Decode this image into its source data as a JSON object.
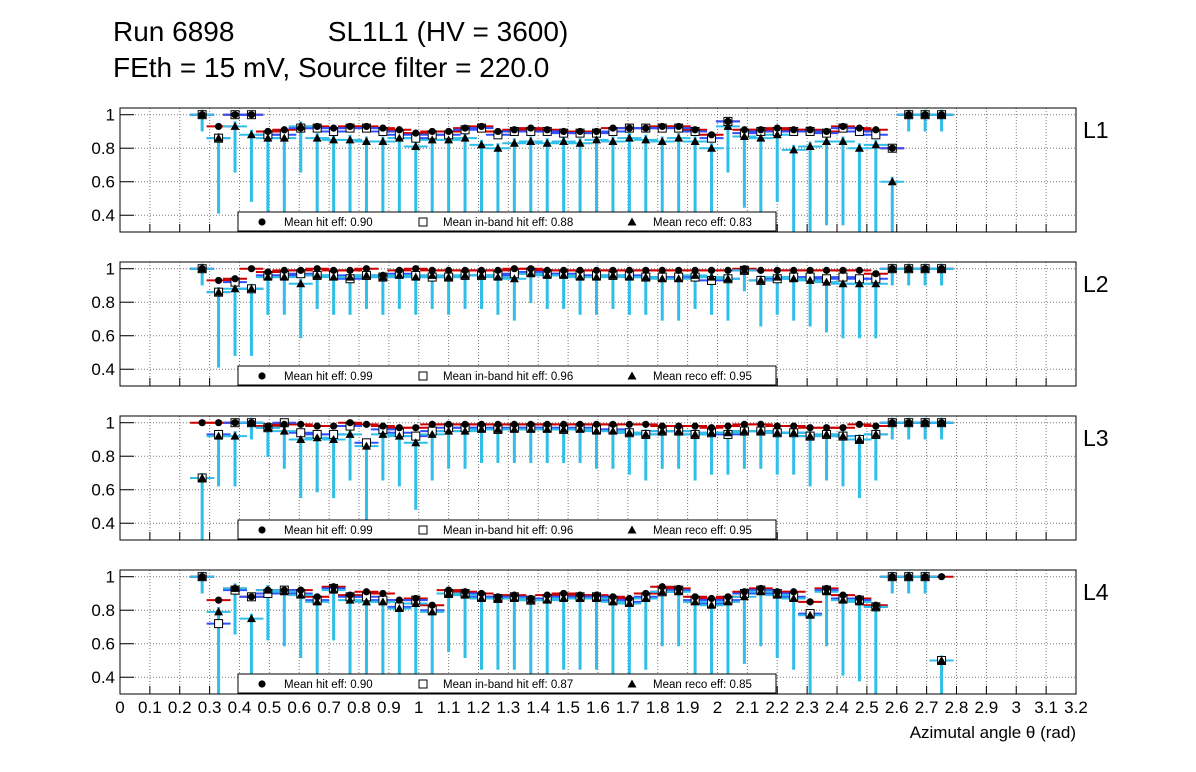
{
  "title": {
    "line1": "Run 6898            SL1L1 (HV = 3600)",
    "line2": "FEth = 15 mV, Source filter = 220.0"
  },
  "colors": {
    "hit": "#cc0000",
    "inband": "#3050ff",
    "reco": "#2fbfe8",
    "grid": "#7a7a7a"
  },
  "chart_data": {
    "type": "scatter",
    "x": [
      0.275,
      0.33,
      0.385,
      0.44,
      0.495,
      0.55,
      0.605,
      0.66,
      0.715,
      0.77,
      0.825,
      0.88,
      0.935,
      0.99,
      1.045,
      1.1,
      1.155,
      1.21,
      1.265,
      1.32,
      1.375,
      1.43,
      1.485,
      1.54,
      1.595,
      1.65,
      1.705,
      1.76,
      1.815,
      1.87,
      1.925,
      1.98,
      2.035,
      2.09,
      2.145,
      2.2,
      2.255,
      2.31,
      2.365,
      2.42,
      2.475,
      2.53,
      2.585,
      2.64,
      2.695,
      2.75
    ],
    "xlabel": "Azimutal angle θ (rad)",
    "xlim": [
      0,
      3.2
    ],
    "ylim": [
      0.3,
      1.04
    ],
    "xticks": [
      "0",
      "0.1",
      "0.2",
      "0.3",
      "0.4",
      "0.5",
      "0.6",
      "0.7",
      "0.8",
      "0.9",
      "1",
      "1.1",
      "1.2",
      "1.3",
      "1.4",
      "1.5",
      "1.6",
      "1.7",
      "1.8",
      "1.9",
      "2",
      "2.1",
      "2.2",
      "2.3",
      "2.4",
      "2.5",
      "2.6",
      "2.7",
      "2.8",
      "2.9",
      "3",
      "3.1",
      "3.2"
    ],
    "yticks": [
      "0.4",
      "0.6",
      "0.8",
      "1"
    ],
    "panels": [
      {
        "layer": "L1",
        "series": [
          {
            "name": "hit",
            "values": [
              1.0,
              0.93,
              1.0,
              1.0,
              0.9,
              0.91,
              0.92,
              0.93,
              0.92,
              0.93,
              0.93,
              0.92,
              0.91,
              0.89,
              0.9,
              0.9,
              0.92,
              0.93,
              0.9,
              0.91,
              0.92,
              0.91,
              0.9,
              0.9,
              0.9,
              0.92,
              0.92,
              0.92,
              0.93,
              0.93,
              0.91,
              0.88,
              0.96,
              0.91,
              0.91,
              0.92,
              0.91,
              0.91,
              0.9,
              0.93,
              0.92,
              0.91,
              0.8,
              1.0,
              1.0,
              1.0
            ]
          },
          {
            "name": "inband",
            "values": [
              1.0,
              0.86,
              1.0,
              1.0,
              0.88,
              0.88,
              0.92,
              0.92,
              0.9,
              0.92,
              0.92,
              0.9,
              0.88,
              0.86,
              0.88,
              0.88,
              0.91,
              0.92,
              0.88,
              0.9,
              0.9,
              0.9,
              0.89,
              0.89,
              0.89,
              0.9,
              0.92,
              0.92,
              0.92,
              0.92,
              0.9,
              0.86,
              0.96,
              0.89,
              0.9,
              0.9,
              0.9,
              0.9,
              0.89,
              0.92,
              0.9,
              0.88,
              0.8,
              1.0,
              1.0,
              1.0
            ]
          },
          {
            "name": "reco",
            "values": [
              1.0,
              0.86,
              0.93,
              0.88,
              0.86,
              0.86,
              0.93,
              0.86,
              0.85,
              0.85,
              0.84,
              0.84,
              0.86,
              0.81,
              0.85,
              0.85,
              0.86,
              0.82,
              0.8,
              0.83,
              0.84,
              0.83,
              0.84,
              0.83,
              0.85,
              0.84,
              0.86,
              0.85,
              0.84,
              0.86,
              0.84,
              0.8,
              0.93,
              0.87,
              0.86,
              0.88,
              0.79,
              0.81,
              0.84,
              0.84,
              0.8,
              0.82,
              0.6,
              1.0,
              1.0,
              1.0
            ]
          }
        ],
        "legend": {
          "hit": "Mean hit  eff: 0.90",
          "inband": "Mean in-band hit eff: 0.88",
          "reco": "Mean reco eff: 0.83"
        }
      },
      {
        "layer": "L2",
        "series": [
          {
            "name": "hit",
            "values": [
              1.0,
              0.93,
              0.94,
              1.0,
              0.98,
              0.99,
              0.99,
              1.0,
              0.99,
              0.99,
              1.0,
              0.96,
              0.99,
              1.0,
              0.99,
              0.99,
              0.99,
              0.99,
              0.99,
              1.0,
              1.0,
              0.99,
              0.99,
              0.99,
              0.99,
              0.99,
              0.99,
              0.99,
              0.99,
              0.99,
              0.99,
              0.99,
              0.99,
              1.0,
              0.99,
              0.99,
              0.99,
              0.99,
              0.99,
              0.99,
              0.99,
              0.97,
              1.0,
              1.0,
              1.0,
              1.0
            ]
          },
          {
            "name": "inband",
            "values": [
              1.0,
              0.86,
              0.92,
              0.88,
              0.96,
              0.96,
              0.97,
              0.96,
              0.96,
              0.94,
              0.96,
              0.95,
              0.97,
              0.96,
              0.95,
              0.95,
              0.96,
              0.96,
              0.96,
              0.97,
              0.98,
              0.97,
              0.97,
              0.96,
              0.96,
              0.96,
              0.96,
              0.95,
              0.95,
              0.95,
              0.95,
              0.93,
              0.94,
              0.99,
              0.93,
              0.94,
              0.95,
              0.95,
              0.94,
              0.95,
              0.94,
              0.94,
              1.0,
              1.0,
              1.0,
              1.0
            ]
          },
          {
            "name": "reco",
            "values": [
              1.0,
              0.86,
              0.88,
              0.88,
              0.95,
              0.95,
              0.91,
              0.96,
              0.95,
              0.95,
              0.96,
              0.95,
              0.96,
              0.95,
              0.96,
              0.95,
              0.96,
              0.96,
              0.95,
              0.94,
              0.97,
              0.96,
              0.96,
              0.95,
              0.95,
              0.96,
              0.95,
              0.95,
              0.94,
              0.94,
              0.96,
              0.95,
              0.94,
              0.99,
              0.93,
              0.95,
              0.94,
              0.93,
              0.92,
              0.91,
              0.91,
              0.91,
              1.0,
              1.0,
              1.0,
              1.0
            ]
          }
        ],
        "legend": {
          "hit": "Mean hit  eff: 0.99",
          "inband": "Mean in-band hit eff: 0.96",
          "reco": "Mean reco eff: 0.95"
        }
      },
      {
        "layer": "L3",
        "series": [
          {
            "name": "hit",
            "values": [
              1.0,
              1.0,
              1.0,
              1.0,
              0.98,
              0.99,
              0.99,
              0.98,
              0.98,
              1.0,
              0.99,
              0.98,
              0.97,
              0.97,
              0.99,
              0.99,
              0.99,
              0.99,
              0.99,
              0.99,
              0.99,
              0.99,
              0.99,
              0.99,
              0.99,
              0.99,
              0.99,
              0.99,
              0.98,
              0.98,
              0.98,
              0.97,
              0.98,
              0.99,
              0.99,
              0.98,
              0.98,
              0.97,
              0.97,
              0.97,
              0.99,
              0.98,
              1.0,
              1.0,
              1.0,
              1.0
            ]
          },
          {
            "name": "inband",
            "values": [
              0.67,
              0.93,
              1.0,
              1.0,
              0.97,
              1.0,
              0.94,
              0.93,
              0.93,
              0.98,
              0.88,
              0.96,
              0.94,
              0.92,
              0.95,
              0.97,
              0.97,
              0.97,
              0.96,
              0.97,
              0.97,
              0.97,
              0.96,
              0.97,
              0.96,
              0.96,
              0.94,
              0.93,
              0.95,
              0.95,
              0.93,
              0.94,
              0.93,
              0.95,
              0.95,
              0.94,
              0.94,
              0.92,
              0.93,
              0.92,
              0.9,
              0.93,
              1.0,
              1.0,
              1.0,
              1.0
            ]
          },
          {
            "name": "reco",
            "values": [
              0.67,
              0.92,
              0.92,
              1.0,
              0.97,
              0.95,
              0.9,
              0.91,
              0.9,
              0.93,
              0.86,
              0.93,
              0.92,
              0.88,
              0.93,
              0.95,
              0.95,
              0.96,
              0.96,
              0.96,
              0.96,
              0.96,
              0.96,
              0.96,
              0.95,
              0.95,
              0.94,
              0.93,
              0.95,
              0.95,
              0.93,
              0.94,
              0.94,
              0.95,
              0.95,
              0.94,
              0.94,
              0.92,
              0.93,
              0.92,
              0.9,
              0.93,
              1.0,
              1.0,
              1.0,
              1.0
            ]
          }
        ],
        "legend": {
          "hit": "Mean hit  eff: 0.99",
          "inband": "Mean in-band hit eff: 0.96",
          "reco": "Mean reco eff: 0.95"
        }
      },
      {
        "layer": "L4",
        "series": [
          {
            "name": "hit",
            "values": [
              1.0,
              0.86,
              0.93,
              0.88,
              0.92,
              0.92,
              0.92,
              0.88,
              0.94,
              0.89,
              0.91,
              0.9,
              0.86,
              0.87,
              0.83,
              0.92,
              0.91,
              0.9,
              0.88,
              0.89,
              0.87,
              0.89,
              0.9,
              0.89,
              0.89,
              0.88,
              0.87,
              0.9,
              0.94,
              0.93,
              0.88,
              0.87,
              0.88,
              0.91,
              0.93,
              0.91,
              0.91,
              0.85,
              0.93,
              0.89,
              0.87,
              0.83,
              1.0,
              1.0,
              1.0,
              1.0
            ]
          },
          {
            "name": "inband",
            "values": [
              1.0,
              0.72,
              0.92,
              0.88,
              0.9,
              0.92,
              0.9,
              0.86,
              0.93,
              0.88,
              0.88,
              0.86,
              0.82,
              0.86,
              0.8,
              0.9,
              0.9,
              0.88,
              0.87,
              0.88,
              0.86,
              0.87,
              0.88,
              0.88,
              0.88,
              0.86,
              0.85,
              0.88,
              0.91,
              0.92,
              0.86,
              0.84,
              0.86,
              0.9,
              0.92,
              0.9,
              0.88,
              0.78,
              0.92,
              0.87,
              0.86,
              0.82,
              1.0,
              1.0,
              1.0,
              0.5
            ]
          },
          {
            "name": "reco",
            "values": [
              1.0,
              0.79,
              0.93,
              0.75,
              0.92,
              0.91,
              0.89,
              0.85,
              0.92,
              0.86,
              0.85,
              0.85,
              0.81,
              0.84,
              0.79,
              0.9,
              0.89,
              0.87,
              0.87,
              0.87,
              0.86,
              0.86,
              0.87,
              0.87,
              0.87,
              0.85,
              0.84,
              0.87,
              0.91,
              0.91,
              0.85,
              0.83,
              0.85,
              0.88,
              0.91,
              0.89,
              0.87,
              0.77,
              0.91,
              0.86,
              0.85,
              0.82,
              1.0,
              1.0,
              1.0,
              0.5
            ]
          }
        ],
        "legend": {
          "hit": "Mean hit  eff: 0.90",
          "inband": "Mean in-band hit eff: 0.87",
          "reco": "Mean reco eff: 0.85"
        }
      }
    ]
  }
}
